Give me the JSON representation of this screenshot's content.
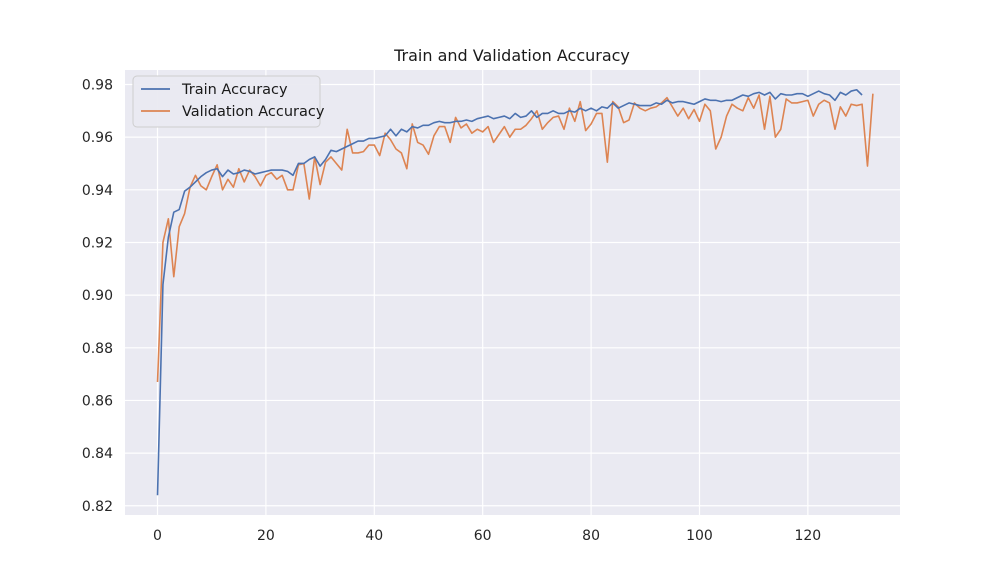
{
  "chart_data": {
    "type": "line",
    "title": "Train and Validation Accuracy",
    "xlabel": "",
    "ylabel": "",
    "xlim": [
      -6,
      137
    ],
    "ylim": [
      0.8165,
      0.9855
    ],
    "xticks": [
      0,
      20,
      40,
      60,
      80,
      100,
      120
    ],
    "yticks": [
      0.82,
      0.84,
      0.86,
      0.88,
      0.9,
      0.92,
      0.94,
      0.96,
      0.98
    ],
    "ytick_labels": [
      "0.82",
      "0.84",
      "0.86",
      "0.88",
      "0.90",
      "0.92",
      "0.94",
      "0.96",
      "0.98"
    ],
    "grid": true,
    "legend_position": "upper-left",
    "series": [
      {
        "name": "Train Accuracy",
        "color": "#4c72b0",
        "values": [
          0.824,
          0.904,
          0.922,
          0.9315,
          0.9325,
          0.9395,
          0.941,
          0.943,
          0.945,
          0.9465,
          0.9475,
          0.948,
          0.945,
          0.9475,
          0.946,
          0.9465,
          0.9475,
          0.947,
          0.946,
          0.9465,
          0.947,
          0.9475,
          0.9475,
          0.9475,
          0.947,
          0.9455,
          0.95,
          0.95,
          0.9515,
          0.9525,
          0.949,
          0.9515,
          0.955,
          0.9545,
          0.9555,
          0.9565,
          0.9575,
          0.9585,
          0.9585,
          0.9595,
          0.9595,
          0.96,
          0.9605,
          0.963,
          0.9605,
          0.963,
          0.962,
          0.964,
          0.9635,
          0.9645,
          0.9645,
          0.9655,
          0.966,
          0.9655,
          0.9655,
          0.966,
          0.966,
          0.9665,
          0.966,
          0.967,
          0.9675,
          0.968,
          0.967,
          0.9675,
          0.968,
          0.967,
          0.969,
          0.9675,
          0.968,
          0.97,
          0.9675,
          0.969,
          0.969,
          0.97,
          0.969,
          0.969,
          0.97,
          0.9695,
          0.971,
          0.97,
          0.971,
          0.97,
          0.9715,
          0.971,
          0.973,
          0.971,
          0.972,
          0.973,
          0.9725,
          0.972,
          0.972,
          0.972,
          0.973,
          0.9725,
          0.974,
          0.973,
          0.9735,
          0.9735,
          0.973,
          0.9725,
          0.9735,
          0.9745,
          0.974,
          0.974,
          0.9735,
          0.974,
          0.974,
          0.975,
          0.976,
          0.9755,
          0.9765,
          0.977,
          0.976,
          0.977,
          0.9745,
          0.9765,
          0.976,
          0.976,
          0.9765,
          0.9765,
          0.9755,
          0.9765,
          0.9775,
          0.9765,
          0.976,
          0.974,
          0.977,
          0.976,
          0.9775,
          0.978,
          0.976
        ]
      },
      {
        "name": "Validation Accuracy",
        "color": "#dd8452",
        "values": [
          0.867,
          0.92,
          0.929,
          0.907,
          0.926,
          0.931,
          0.941,
          0.9455,
          0.9415,
          0.94,
          0.945,
          0.9495,
          0.94,
          0.944,
          0.941,
          0.948,
          0.943,
          0.9475,
          0.945,
          0.9415,
          0.9455,
          0.9465,
          0.944,
          0.9455,
          0.94,
          0.94,
          0.9495,
          0.95,
          0.9365,
          0.9525,
          0.942,
          0.9505,
          0.9525,
          0.95,
          0.9475,
          0.963,
          0.954,
          0.954,
          0.9545,
          0.957,
          0.957,
          0.953,
          0.9615,
          0.959,
          0.9555,
          0.954,
          0.948,
          0.965,
          0.958,
          0.957,
          0.9535,
          0.9605,
          0.964,
          0.964,
          0.958,
          0.9675,
          0.9635,
          0.965,
          0.9615,
          0.963,
          0.962,
          0.964,
          0.958,
          0.961,
          0.964,
          0.96,
          0.963,
          0.963,
          0.9645,
          0.967,
          0.97,
          0.963,
          0.9655,
          0.9675,
          0.968,
          0.963,
          0.971,
          0.966,
          0.9735,
          0.9625,
          0.965,
          0.969,
          0.969,
          0.9505,
          0.9735,
          0.9715,
          0.9655,
          0.9665,
          0.973,
          0.971,
          0.97,
          0.971,
          0.9715,
          0.973,
          0.975,
          0.9715,
          0.968,
          0.971,
          0.967,
          0.9705,
          0.966,
          0.9725,
          0.97,
          0.9555,
          0.96,
          0.968,
          0.9725,
          0.971,
          0.97,
          0.975,
          0.971,
          0.976,
          0.963,
          0.9755,
          0.96,
          0.963,
          0.9745,
          0.973,
          0.973,
          0.9735,
          0.974,
          0.968,
          0.9725,
          0.974,
          0.973,
          0.963,
          0.9715,
          0.968,
          0.9725,
          0.972,
          0.9725,
          0.949,
          0.9765
        ]
      }
    ]
  }
}
